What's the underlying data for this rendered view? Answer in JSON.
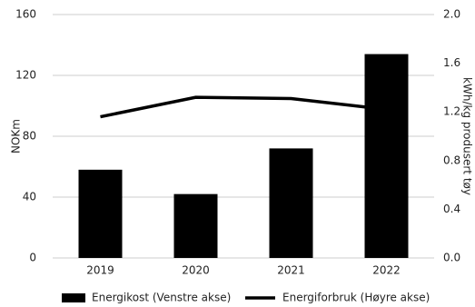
{
  "chart_data": {
    "type": "bar",
    "categories": [
      "2019",
      "2020",
      "2021",
      "2022"
    ],
    "series": [
      {
        "name": "Energikost (Venstre akse)",
        "type": "bar",
        "color": "#000000",
        "values": [
          58,
          42,
          72,
          134
        ]
      },
      {
        "name": "Energiforbruk (Høyre akse)",
        "type": "line",
        "axis": "y2",
        "color": "#000000",
        "values": [
          1.16,
          1.32,
          1.31,
          1.22
        ]
      }
    ],
    "ylabel": "NOKm",
    "y2label": "kWh/kg produsert tøy",
    "ylim": [
      0,
      160
    ],
    "yticks": [
      0,
      40,
      80,
      120,
      160
    ],
    "y2lim": [
      0,
      2
    ],
    "y2ticks": [
      {
        "value": 0,
        "label": "0.0"
      },
      0.4,
      0.8,
      1.2,
      1.6,
      {
        "value": 2,
        "label": "2.0"
      }
    ],
    "grid": true,
    "legend": "bottom"
  }
}
